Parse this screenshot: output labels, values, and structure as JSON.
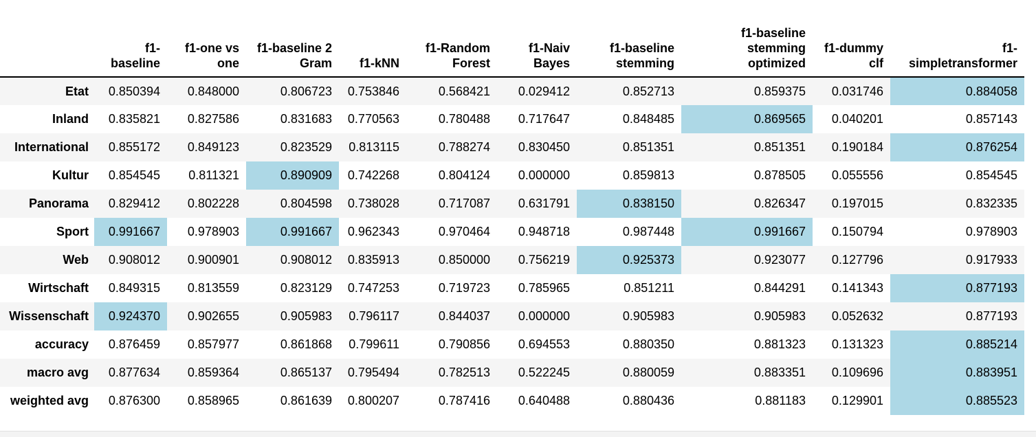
{
  "chart_data": {
    "type": "table",
    "columns": [
      "f1-baseline",
      "f1-one vs one",
      "f1-baseline 2 Gram",
      "f1-kNN",
      "f1-Random Forest",
      "f1-Naiv Bayes",
      "f1-baseline stemming",
      "f1-baseline stemming optimized",
      "f1-dummy clf",
      "f1-simpletransformer"
    ],
    "rows": [
      {
        "label": "Etat",
        "values": [
          "0.850394",
          "0.848000",
          "0.806723",
          "0.753846",
          "0.568421",
          "0.029412",
          "0.852713",
          "0.859375",
          "0.031746",
          "0.884058"
        ]
      },
      {
        "label": "Inland",
        "values": [
          "0.835821",
          "0.827586",
          "0.831683",
          "0.770563",
          "0.780488",
          "0.717647",
          "0.848485",
          "0.869565",
          "0.040201",
          "0.857143"
        ]
      },
      {
        "label": "International",
        "values": [
          "0.855172",
          "0.849123",
          "0.823529",
          "0.813115",
          "0.788274",
          "0.830450",
          "0.851351",
          "0.851351",
          "0.190184",
          "0.876254"
        ]
      },
      {
        "label": "Kultur",
        "values": [
          "0.854545",
          "0.811321",
          "0.890909",
          "0.742268",
          "0.804124",
          "0.000000",
          "0.859813",
          "0.878505",
          "0.055556",
          "0.854545"
        ]
      },
      {
        "label": "Panorama",
        "values": [
          "0.829412",
          "0.802228",
          "0.804598",
          "0.738028",
          "0.717087",
          "0.631791",
          "0.838150",
          "0.826347",
          "0.197015",
          "0.832335"
        ]
      },
      {
        "label": "Sport",
        "values": [
          "0.991667",
          "0.978903",
          "0.991667",
          "0.962343",
          "0.970464",
          "0.948718",
          "0.987448",
          "0.991667",
          "0.150794",
          "0.978903"
        ]
      },
      {
        "label": "Web",
        "values": [
          "0.908012",
          "0.900901",
          "0.908012",
          "0.835913",
          "0.850000",
          "0.756219",
          "0.925373",
          "0.923077",
          "0.127796",
          "0.917933"
        ]
      },
      {
        "label": "Wirtschaft",
        "values": [
          "0.849315",
          "0.813559",
          "0.823129",
          "0.747253",
          "0.719723",
          "0.785965",
          "0.851211",
          "0.844291",
          "0.141343",
          "0.877193"
        ]
      },
      {
        "label": "Wissenschaft",
        "values": [
          "0.924370",
          "0.902655",
          "0.905983",
          "0.796117",
          "0.844037",
          "0.000000",
          "0.905983",
          "0.905983",
          "0.052632",
          "0.877193"
        ]
      },
      {
        "label": "accuracy",
        "values": [
          "0.876459",
          "0.857977",
          "0.861868",
          "0.799611",
          "0.790856",
          "0.694553",
          "0.880350",
          "0.881323",
          "0.131323",
          "0.885214"
        ]
      },
      {
        "label": "macro avg",
        "values": [
          "0.877634",
          "0.859364",
          "0.865137",
          "0.795494",
          "0.782513",
          "0.522245",
          "0.880059",
          "0.883351",
          "0.109696",
          "0.883951"
        ]
      },
      {
        "label": "weighted avg",
        "values": [
          "0.876300",
          "0.858965",
          "0.861639",
          "0.800207",
          "0.787416",
          "0.640488",
          "0.880436",
          "0.881183",
          "0.129901",
          "0.885523"
        ]
      }
    ],
    "highlight_color": "#add8e6",
    "highlighted_cells": [
      [
        0,
        9
      ],
      [
        1,
        7
      ],
      [
        2,
        9
      ],
      [
        3,
        2
      ],
      [
        4,
        6
      ],
      [
        5,
        0
      ],
      [
        5,
        2
      ],
      [
        5,
        7
      ],
      [
        6,
        6
      ],
      [
        7,
        9
      ],
      [
        8,
        0
      ],
      [
        9,
        9
      ],
      [
        10,
        9
      ],
      [
        11,
        9
      ]
    ]
  }
}
